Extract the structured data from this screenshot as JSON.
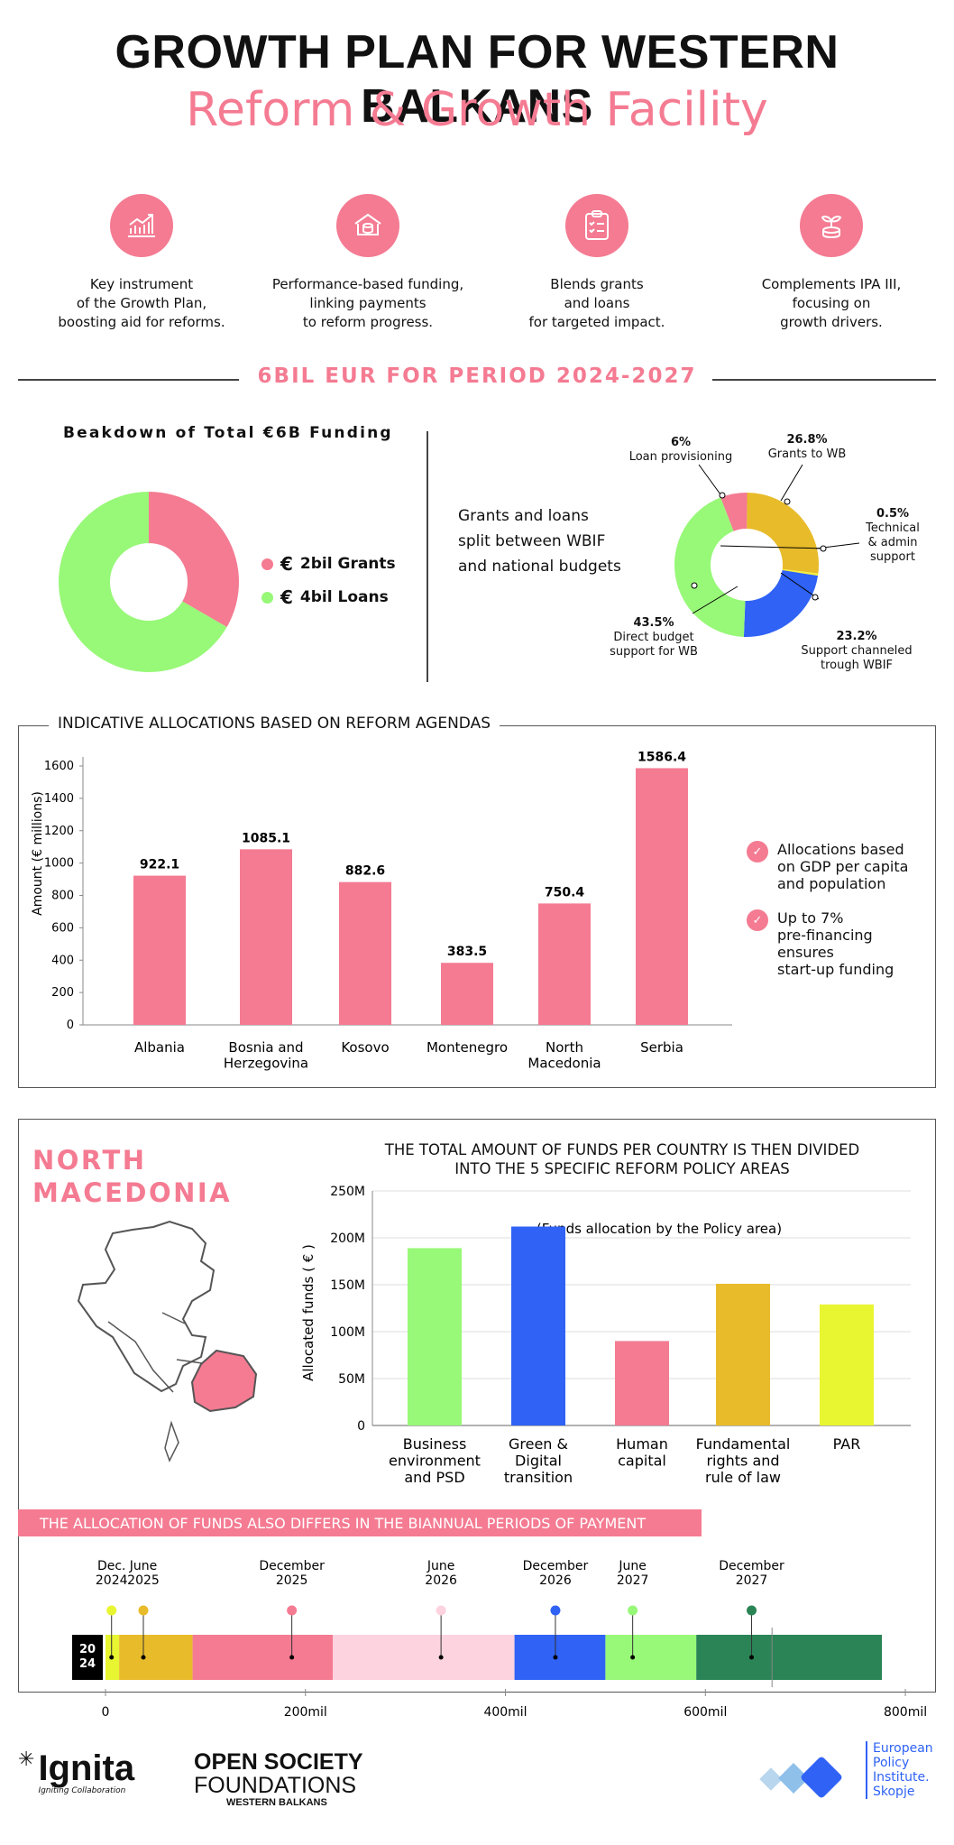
{
  "header": {
    "title": "GROWTH PLAN FOR WESTERN BALKANS",
    "subtitle": "Reform & Growth Facility"
  },
  "features": [
    {
      "icon": "growth-chart-icon",
      "text": "Key instrument\nof the Growth Plan,\nboosting aid for reforms."
    },
    {
      "icon": "bank-coins-icon",
      "text": "Performance-based funding,\nlinking payments\nto reform progress."
    },
    {
      "icon": "checklist-icon",
      "text": "Blends grants\nand loans\nfor targeted impact."
    },
    {
      "icon": "plant-coin-icon",
      "text": "Complements IPA III,\nfocusing on\ngrowth drivers."
    }
  ],
  "period_label": "6BIL EUR FOR PERIOD 2024-2027",
  "breakdown": {
    "title": "Beakdown of Total €6B Funding",
    "legend": [
      {
        "label": "2bil Grants",
        "color": "#f47b92"
      },
      {
        "label": "4bil Loans",
        "color": "#98f878"
      }
    ]
  },
  "grants_loans_text": "Grants and loans\nsplit between WBIF\nand national budgets",
  "split_labels": [
    {
      "pct": "6%",
      "text": "Loan provisioning"
    },
    {
      "pct": "26.8%",
      "text": "Grants to WB"
    },
    {
      "pct": "0.5%",
      "text": "Technical\n& admin\nsupport"
    },
    {
      "pct": "23.2%",
      "text": "Support channeled\ntrough WBIF"
    },
    {
      "pct": "43.5%",
      "text": "Direct budget\nsupport for WB"
    }
  ],
  "allocations": {
    "title": "INDICATIVE ALLOCATIONS BASED ON REFORM AGENDAS",
    "notes": [
      "Allocations based\non GDP per capita\nand population",
      "Up to 7%\npre-financing\nensures\nstart-up funding"
    ]
  },
  "north_macedonia": {
    "heading": "NORTH\nMACEDONIA",
    "chart_title": "THE TOTAL AMOUNT OF FUNDS PER COUNTRY IS THEN DIVIDED\nINTO THE 5 SPECIFIC REFORM POLICY AREAS"
  },
  "timeline": {
    "banner": "THE ALLOCATION OF FUNDS ALSO DIFFERS IN THE BIANNUAL PERIODS OF PAYMENT",
    "badge": "20\n24"
  },
  "footer": {
    "ignita": "Ignita",
    "ignita_tag": "Igniting Collaboration",
    "osf1": "OPEN SOCIETY",
    "osf2": "FOUNDATIONS",
    "osf3": "WESTERN BALKANS",
    "epi": "European\nPolicy\nInstitute.\nSkopje"
  },
  "chart_data": [
    {
      "type": "pie",
      "title": "Beakdown of Total €6B Funding",
      "categories": [
        "2bil Grants",
        "4bil Loans"
      ],
      "values": [
        2,
        4
      ],
      "colors": [
        "#f47b92",
        "#98f878"
      ]
    },
    {
      "type": "pie",
      "categories": [
        "Loan provisioning",
        "Grants to WB",
        "Technical & admin support",
        "Support channeled trough WBIF",
        "Direct budget support for WB"
      ],
      "values": [
        6,
        26.8,
        0.5,
        23.2,
        43.5
      ],
      "colors": [
        "#f47b92",
        "#e8bb2a",
        "#f5ee3c",
        "#2f62f5",
        "#98f878"
      ]
    },
    {
      "type": "bar",
      "title": "INDICATIVE ALLOCATIONS BASED ON REFORM AGENDAS",
      "categories": [
        "Albania",
        "Bosnia and\nHerzegovina",
        "Kosovo",
        "Montenegro",
        "North\nMacedonia",
        "Serbia"
      ],
      "values": [
        922.1,
        1085.1,
        882.6,
        383.5,
        750.4,
        1586.4
      ],
      "data_labels": [
        "922.1",
        "1085.1",
        "882.6",
        "383.5",
        "750.4",
        "1586.4"
      ],
      "ylabel": "Amount (€ millions)",
      "ylim": [
        0,
        1600
      ],
      "yticks": [
        0,
        200,
        400,
        600,
        800,
        1000,
        1200,
        1400,
        1600
      ],
      "color": "#f47b92"
    },
    {
      "type": "bar",
      "title": "(Funds allocation by the Policy area)",
      "categories": [
        "Business\nenvironment\nand PSD",
        "Green &\nDigital\ntransition",
        "Human\ncapital",
        "Fundamental\nrights and\nrule of law",
        "PAR"
      ],
      "values": [
        189,
        212,
        90,
        151,
        129
      ],
      "colors": [
        "#98f878",
        "#2f62f5",
        "#f47b92",
        "#e8bb2a",
        "#e8f531"
      ],
      "ylabel": "Allocated funds ( € )",
      "ylim": [
        0,
        250
      ],
      "yticks": [
        "0",
        "50M",
        "100M",
        "150M",
        "200M",
        "250M"
      ],
      "grid": true
    },
    {
      "type": "bar",
      "title": "THE ALLOCATION OF FUNDS ALSO DIFFERS IN THE BIANNUAL PERIODS OF PAYMENT",
      "categories": [
        "Dec.\n2024",
        "June\n2025",
        "December\n2025",
        "June\n2026",
        "December\n2026",
        "June\n2027",
        "December\n2027"
      ],
      "segments": [
        [
          0,
          18
        ],
        [
          18,
          115
        ],
        [
          115,
          300
        ],
        [
          300,
          540
        ],
        [
          540,
          660
        ],
        [
          660,
          780
        ],
        [
          780,
          1025
        ]
      ],
      "scale_max": 1025,
      "xticks": [
        {
          "v": 0,
          "l": "0"
        },
        {
          "v": 264,
          "l": "200mil"
        },
        {
          "v": 528,
          "l": "400mil"
        },
        {
          "v": 792,
          "l": "600mil"
        },
        {
          "v": 1056,
          "l": "800mil"
        }
      ],
      "colors": [
        "#e8f531",
        "#e8bb2a",
        "#f47b92",
        "#fdd3df",
        "#2f62f5",
        "#98f878",
        "#2a8456"
      ]
    }
  ]
}
